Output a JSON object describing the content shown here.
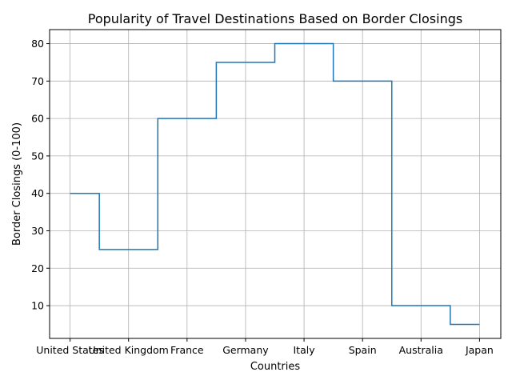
{
  "chart_data": {
    "type": "line",
    "drawstyle": "steps-mid",
    "title": "Popularity of Travel Destinations Based on Border Closings",
    "xlabel": "Countries",
    "ylabel": "Border Closings (0-100)",
    "categories": [
      "United States",
      "United Kingdom",
      "France",
      "Germany",
      "Italy",
      "Spain",
      "Australia",
      "Japan"
    ],
    "values": [
      40,
      25,
      60,
      75,
      80,
      70,
      10,
      5
    ],
    "ylim": [
      1.25,
      83.75
    ],
    "yticks": [
      10,
      20,
      30,
      40,
      50,
      60,
      70,
      80
    ],
    "grid": true,
    "color": "#1f77b4"
  }
}
